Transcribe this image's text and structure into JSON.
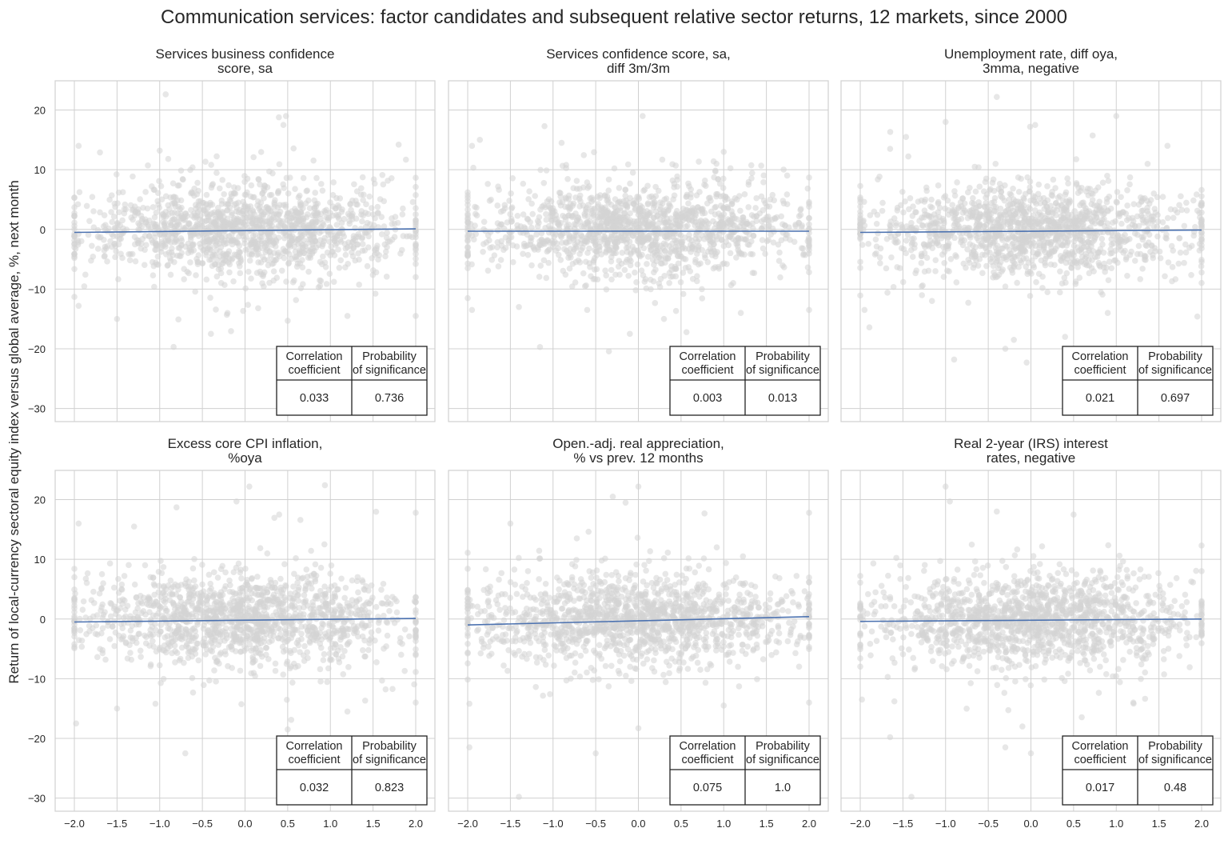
{
  "chart_data": {
    "type": "scatter",
    "title": "Communication services: factor candidates and subsequent relative sector returns, 12 markets, since 2000",
    "ylabel": "Return of local-currency sectoral equity index versus global average, %, next month",
    "xlim": [
      -2.225,
      2.225
    ],
    "ylim": [
      -32.2,
      24.9
    ],
    "x_ticks": [
      "-2.0",
      "-1.5",
      "-1.0",
      "-0.5",
      "0.0",
      "0.5",
      "1.0",
      "1.5",
      "2.0"
    ],
    "x_tick_values": [
      -2,
      -1.5,
      -1,
      -0.5,
      0,
      0.5,
      1,
      1.5,
      2
    ],
    "y_ticks": [
      "20",
      "10",
      "0",
      "-10",
      "-20",
      "-30"
    ],
    "y_tick_values": [
      20,
      10,
      0,
      -10,
      -20,
      -30
    ],
    "grid": true,
    "colors": {
      "points": "#d3d3d3",
      "regression": "#4c72b0",
      "grid": "#d0d0d0"
    },
    "table_headers": [
      [
        "Correlation",
        "coefficient"
      ],
      [
        "Probability",
        "of significance"
      ]
    ],
    "panels": [
      {
        "title": [
          "Services business confidence",
          "score, sa"
        ],
        "correlation": "0.033",
        "probability": "0.736",
        "regression": [
          [
            -2,
            -0.5
          ],
          [
            2,
            0.1
          ]
        ],
        "outliers": [
          [
            0.48,
            19
          ],
          [
            0.45,
            17.5
          ],
          [
            1.8,
            14.2
          ],
          [
            -1.0,
            13.2
          ],
          [
            -1.95,
            14
          ],
          [
            0.1,
            12.1
          ],
          [
            -0.9,
            11.8
          ],
          [
            -1.7,
            12.9
          ],
          [
            0.5,
            -15.3
          ],
          [
            -0.4,
            -17.5
          ],
          [
            -1.5,
            -15
          ],
          [
            1.2,
            -14.5
          ],
          [
            -1.95,
            -12.8
          ],
          [
            2.0,
            -14.5
          ]
        ]
      },
      {
        "title": [
          "Services confidence score, sa,",
          "diff 3m/3m"
        ],
        "correlation": "0.003",
        "probability": "0.013",
        "regression": [
          [
            -2,
            -0.3
          ],
          [
            2,
            -0.3
          ]
        ],
        "outliers": [
          [
            0.05,
            19
          ],
          [
            -1.1,
            17.3
          ],
          [
            -1.95,
            14
          ],
          [
            -0.9,
            14.5
          ],
          [
            1.0,
            13
          ],
          [
            -0.1,
            -17.5
          ],
          [
            -1.4,
            -13
          ],
          [
            0.3,
            -15
          ],
          [
            1.2,
            -14
          ],
          [
            -1.95,
            -13.5
          ],
          [
            2.0,
            -13.5
          ],
          [
            -0.6,
            -13.5
          ]
        ]
      },
      {
        "title": [
          "Unemployment rate, diff oya,",
          "3mma, negative"
        ],
        "correlation": "0.021",
        "probability": "0.697",
        "regression": [
          [
            -2,
            -0.5
          ],
          [
            2,
            -0.1
          ]
        ],
        "outliers": [
          [
            -0.4,
            22.2
          ],
          [
            0.05,
            17.5
          ],
          [
            1.0,
            19
          ],
          [
            -1.0,
            18
          ],
          [
            -1.65,
            13.5
          ],
          [
            1.6,
            14
          ],
          [
            -0.2,
            -18.5
          ],
          [
            -0.3,
            -20
          ],
          [
            -0.9,
            -21.8
          ],
          [
            -0.05,
            -22.3
          ],
          [
            0.9,
            -14
          ],
          [
            1.95,
            -14.6
          ],
          [
            -1.95,
            -13.5
          ],
          [
            0.4,
            -18
          ]
        ]
      },
      {
        "title": [
          "Excess core CPI inflation,",
          "%oya"
        ],
        "correlation": "0.032",
        "probability": "0.823",
        "regression": [
          [
            -2,
            -0.5
          ],
          [
            2,
            0.1
          ]
        ],
        "outliers": [
          [
            0.05,
            22.2
          ],
          [
            -0.1,
            19.7
          ],
          [
            0.4,
            17.5
          ],
          [
            2.0,
            17.8
          ],
          [
            -1.95,
            16
          ],
          [
            -1.3,
            15.5
          ],
          [
            -0.7,
            -22.5
          ],
          [
            0.5,
            -18.5
          ],
          [
            -1.98,
            -17.5
          ],
          [
            -1.5,
            -15
          ],
          [
            -1.05,
            -14.2
          ],
          [
            1.2,
            -15.5
          ],
          [
            2.0,
            -14
          ]
        ]
      },
      {
        "title": [
          "Open.-adj. real appreciation,",
          "% vs prev. 12 months"
        ],
        "correlation": "0.075",
        "probability": "1.0",
        "regression": [
          [
            -2,
            -1.0
          ],
          [
            2,
            0.4
          ]
        ],
        "outliers": [
          [
            0.0,
            22.2
          ],
          [
            -0.3,
            20.5
          ],
          [
            -0.15,
            19.5
          ],
          [
            2.0,
            17.8
          ],
          [
            -1.5,
            16
          ],
          [
            -1.4,
            -29.8
          ],
          [
            -1.98,
            -21.5
          ],
          [
            -0.5,
            -22.5
          ],
          [
            0.0,
            -18.3
          ],
          [
            -1.98,
            -14.2
          ],
          [
            1.0,
            -14.5
          ],
          [
            2.0,
            -14
          ]
        ]
      },
      {
        "title": [
          "Real 2-year (IRS) interest",
          "rates, negative"
        ],
        "correlation": "0.017",
        "probability": "0.48",
        "regression": [
          [
            -2,
            -0.4
          ],
          [
            2,
            0.0
          ]
        ],
        "outliers": [
          [
            -1.0,
            22.2
          ],
          [
            -0.95,
            19.7
          ],
          [
            -1.4,
            -29.8
          ],
          [
            -1.65,
            -19.8
          ],
          [
            -0.3,
            -21.5
          ],
          [
            0.0,
            -22.5
          ],
          [
            -1.6,
            -13.8
          ],
          [
            -0.1,
            -18
          ],
          [
            0.5,
            17.5
          ],
          [
            -0.4,
            18
          ],
          [
            -1.98,
            -13.5
          ],
          [
            1.2,
            -14
          ]
        ]
      }
    ]
  }
}
